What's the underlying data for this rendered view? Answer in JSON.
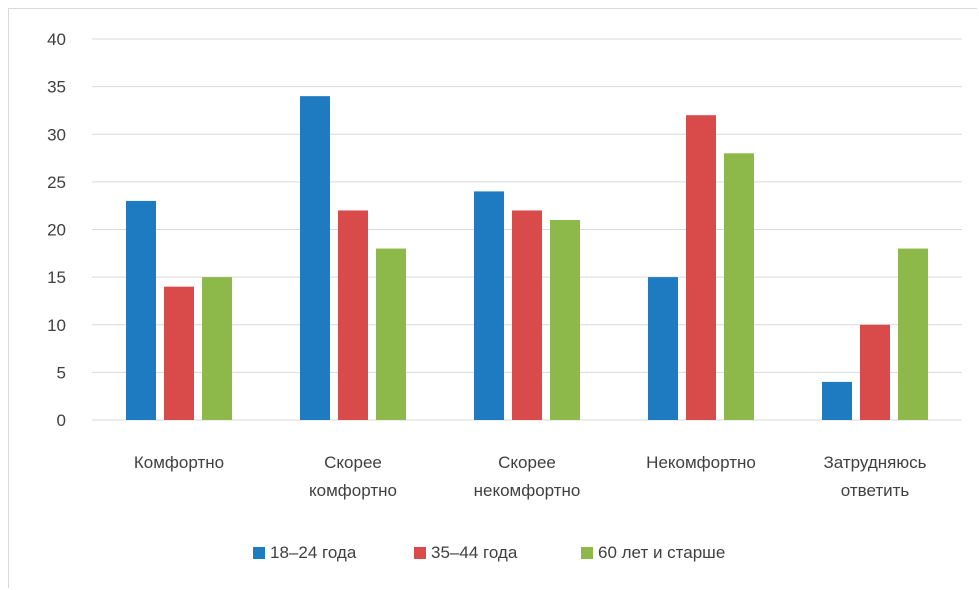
{
  "chart_data": {
    "type": "bar",
    "categories": [
      [
        "Комфортно"
      ],
      [
        "Скорее",
        "комфортно"
      ],
      [
        "Скорее",
        "некомфортно"
      ],
      [
        "Некомфортно"
      ],
      [
        "Затрудняюсь",
        "ответить"
      ]
    ],
    "series": [
      {
        "name": "18–24 года",
        "color": "#1f7bc1",
        "values": [
          23,
          34,
          24,
          15,
          4
        ]
      },
      {
        "name": "35–44 года",
        "color": "#d94a4a",
        "values": [
          14,
          22,
          22,
          32,
          10
        ]
      },
      {
        "name": "60 лет и старше",
        "color": "#8db84a",
        "values": [
          15,
          18,
          21,
          28,
          18
        ]
      }
    ],
    "yticks": [
      "0",
      "5",
      "10",
      "15",
      "20",
      "25",
      "30",
      "35",
      "40"
    ],
    "ylim": [
      0,
      40
    ],
    "grid": true,
    "gridColor": "#d9d9d9",
    "legend_position": "bottom"
  }
}
